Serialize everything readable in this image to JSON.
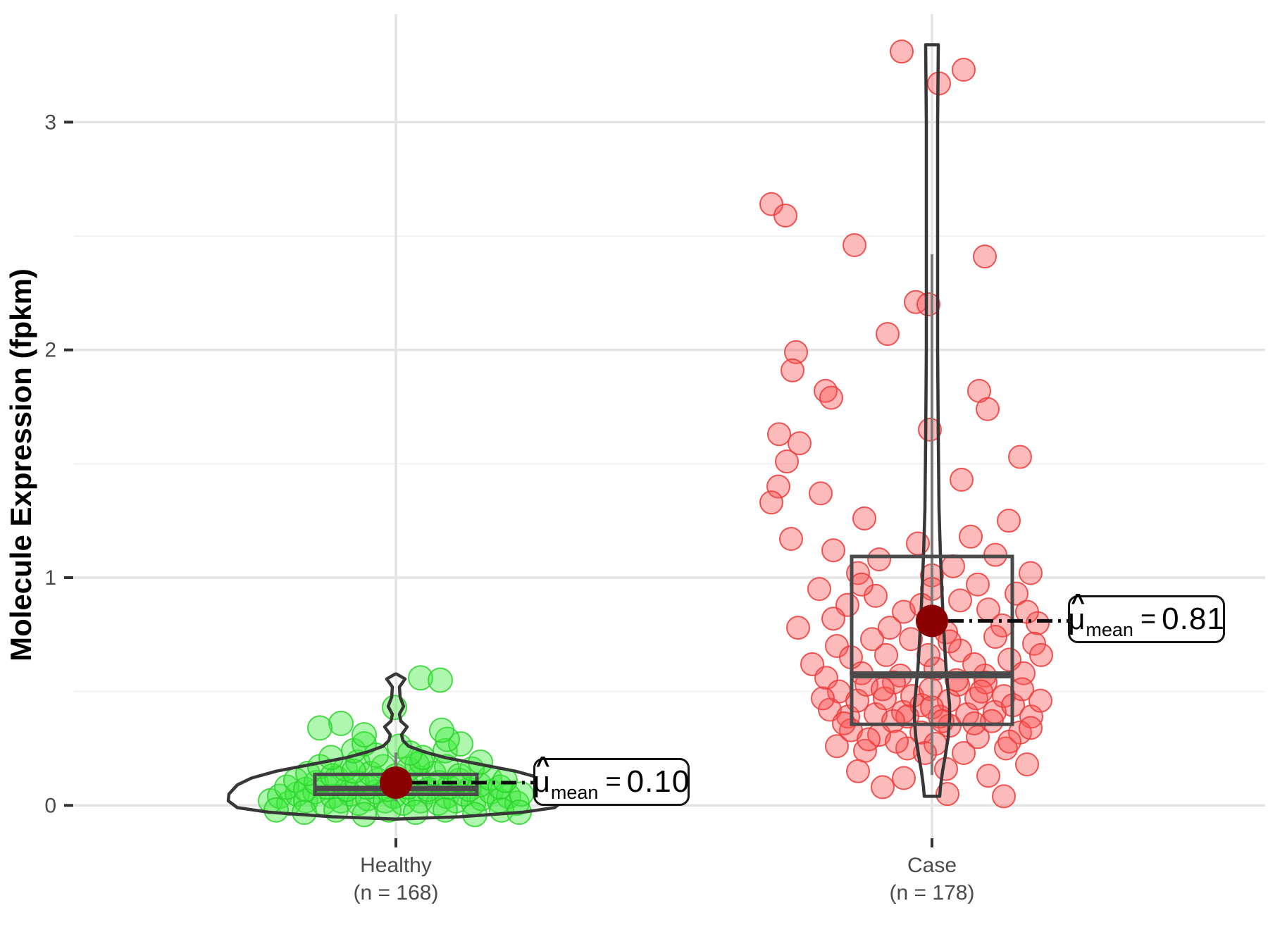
{
  "chart_data": {
    "type": "violin-box-jitter",
    "ylabel": "Molecule Expression (fpkm)",
    "ylim": [
      -0.15,
      3.47
    ],
    "yticks": [
      0,
      1,
      2,
      3
    ],
    "yminor": [
      0.5,
      1.5,
      2.5
    ],
    "grid": "on",
    "colors": {
      "grid_major": "#e4e4e4",
      "grid_minor": "#f2f2f2",
      "tick_text": "#4a4a4a",
      "axis_title": "#000000",
      "violin_stroke": "#373737",
      "box_stroke": "#4a4a4a",
      "whisker": "#7a7a7a",
      "mean_point": "#8b0000",
      "meanline": "#0d0d0d",
      "healthy_fill": "rgba(64,235,64,0.42)",
      "healthy_edge": "rgba(46,210,46,0.85)",
      "case_fill": "rgba(250,82,82,0.40)",
      "case_edge": "rgba(238,58,58,0.85)"
    },
    "groups": [
      {
        "id": "healthy",
        "label": "Healthy",
        "sublabel": "(n = 168)",
        "n": 168,
        "mean": 0.1,
        "median": 0.074,
        "q1": 0.049,
        "q3": 0.136,
        "whisker_low": 0.018,
        "whisker_high": 0.232,
        "annotation": {
          "mu": "μ",
          "hat": "^",
          "sub": "mean",
          "eq": "=",
          "value": "0.10"
        },
        "point_radius": 17,
        "mean_radius": 23,
        "violin": [
          [
            0.577,
            1
          ],
          [
            0.555,
            13
          ],
          [
            0.52,
            5
          ],
          [
            0.475,
            6
          ],
          [
            0.435,
            11
          ],
          [
            0.4,
            5
          ],
          [
            0.37,
            7
          ],
          [
            0.345,
            16
          ],
          [
            0.31,
            8
          ],
          [
            0.285,
            10
          ],
          [
            0.26,
            18
          ],
          [
            0.235,
            40
          ],
          [
            0.21,
            70
          ],
          [
            0.18,
            120
          ],
          [
            0.15,
            170
          ],
          [
            0.12,
            205
          ],
          [
            0.09,
            225
          ],
          [
            0.05,
            237
          ],
          [
            0.02,
            238
          ],
          [
            -0.01,
            225
          ],
          [
            -0.03,
            180
          ],
          [
            -0.05,
            90
          ],
          [
            -0.06,
            0
          ]
        ],
        "points": [
          [
            -178,
            0.02
          ],
          [
            -165,
            0.04
          ],
          [
            -152,
            0.01
          ],
          [
            -140,
            0.05
          ],
          [
            -128,
            0.02
          ],
          [
            -115,
            0.06
          ],
          [
            -103,
            0.01
          ],
          [
            -90,
            0.04
          ],
          [
            -78,
            0.02
          ],
          [
            -65,
            0.05
          ],
          [
            -53,
            0.01
          ],
          [
            -40,
            0.03
          ],
          [
            -28,
            0.06
          ],
          [
            -15,
            0.02
          ],
          [
            -3,
            0.04
          ],
          [
            10,
            0.01
          ],
          [
            22,
            0.05
          ],
          [
            35,
            0.02
          ],
          [
            47,
            0.06
          ],
          [
            60,
            0.01
          ],
          [
            72,
            0.04
          ],
          [
            85,
            0.02
          ],
          [
            97,
            0.05
          ],
          [
            110,
            0.01
          ],
          [
            122,
            0.03
          ],
          [
            135,
            0.06
          ],
          [
            147,
            0.02
          ],
          [
            160,
            0.04
          ],
          [
            172,
            0.01
          ],
          [
            178,
            0.05
          ],
          [
            -170,
            -0.02
          ],
          [
            -130,
            -0.03
          ],
          [
            -85,
            -0.02
          ],
          [
            -45,
            -0.04
          ],
          [
            -10,
            -0.02
          ],
          [
            28,
            -0.03
          ],
          [
            70,
            -0.02
          ],
          [
            112,
            -0.04
          ],
          [
            150,
            -0.02
          ],
          [
            175,
            -0.03
          ],
          [
            -155,
            0.08
          ],
          [
            -142,
            0.11
          ],
          [
            -128,
            0.07
          ],
          [
            -113,
            0.1
          ],
          [
            -98,
            0.08
          ],
          [
            -84,
            0.12
          ],
          [
            -70,
            0.07
          ],
          [
            -55,
            0.1
          ],
          [
            -41,
            0.08
          ],
          [
            -26,
            0.11
          ],
          [
            -12,
            0.07
          ],
          [
            3,
            0.1
          ],
          [
            17,
            0.08
          ],
          [
            32,
            0.12
          ],
          [
            46,
            0.07
          ],
          [
            61,
            0.1
          ],
          [
            75,
            0.08
          ],
          [
            90,
            0.11
          ],
          [
            104,
            0.07
          ],
          [
            119,
            0.09
          ],
          [
            133,
            0.12
          ],
          [
            148,
            0.08
          ],
          [
            155,
            0.11
          ],
          [
            -125,
            0.14
          ],
          [
            -108,
            0.17
          ],
          [
            -90,
            0.13
          ],
          [
            -72,
            0.16
          ],
          [
            -54,
            0.19
          ],
          [
            -36,
            0.14
          ],
          [
            -18,
            0.17
          ],
          [
            0,
            0.13
          ],
          [
            18,
            0.16
          ],
          [
            36,
            0.19
          ],
          [
            54,
            0.14
          ],
          [
            72,
            0.17
          ],
          [
            90,
            0.13
          ],
          [
            108,
            0.16
          ],
          [
            120,
            0.19
          ],
          [
            -60,
            0.15
          ],
          [
            30,
            0.18
          ],
          [
            -92,
            0.21
          ],
          [
            -60,
            0.24
          ],
          [
            -28,
            0.22
          ],
          [
            5,
            0.26
          ],
          [
            38,
            0.21
          ],
          [
            70,
            0.24
          ],
          [
            92,
            0.27
          ],
          [
            -45,
            0.27
          ],
          [
            20,
            0.23
          ],
          [
            -45,
            0.31
          ],
          [
            -78,
            0.36
          ],
          [
            73,
            0.29
          ],
          [
            -2,
            0.43
          ],
          [
            35,
            0.56
          ],
          [
            63,
            0.55
          ],
          [
            -108,
            0.34
          ],
          [
            65,
            0.33
          ]
        ]
      },
      {
        "id": "case",
        "label": "Case",
        "sublabel": "(n = 178)",
        "n": 178,
        "mean": 0.81,
        "median": 0.573,
        "q1": 0.356,
        "q3": 1.093,
        "whisker_low": 0.133,
        "whisker_high": 2.42,
        "annotation": {
          "mu": "μ",
          "hat": "^",
          "sub": "mean",
          "eq": "=",
          "value": "0.81"
        },
        "point_radius": 16,
        "mean_radius": 23,
        "violin": [
          [
            3.34,
            9
          ],
          [
            3.0,
            8
          ],
          [
            2.5,
            8
          ],
          [
            2.0,
            8
          ],
          [
            1.6,
            9
          ],
          [
            1.3,
            10
          ],
          [
            1.1,
            12
          ],
          [
            0.95,
            14
          ],
          [
            0.81,
            16
          ],
          [
            0.7,
            18
          ],
          [
            0.6,
            20
          ],
          [
            0.5,
            23
          ],
          [
            0.44,
            25
          ],
          [
            0.38,
            25
          ],
          [
            0.3,
            23
          ],
          [
            0.22,
            19
          ],
          [
            0.15,
            15
          ],
          [
            0.08,
            12
          ],
          [
            0.04,
            11
          ]
        ],
        "points": [
          [
            -43,
            3.31
          ],
          [
            10,
            3.17
          ],
          [
            45,
            3.23
          ],
          [
            -228,
            2.64
          ],
          [
            -208,
            2.59
          ],
          [
            -110,
            2.46
          ],
          [
            75,
            2.41
          ],
          [
            -23,
            2.21
          ],
          [
            -5,
            2.2
          ],
          [
            -63,
            2.07
          ],
          [
            -193,
            1.99
          ],
          [
            -198,
            1.91
          ],
          [
            -151,
            1.82
          ],
          [
            67,
            1.82
          ],
          [
            -143,
            1.79
          ],
          [
            79,
            1.74
          ],
          [
            -217,
            1.63
          ],
          [
            -3,
            1.65
          ],
          [
            -188,
            1.59
          ],
          [
            -206,
            1.51
          ],
          [
            125,
            1.53
          ],
          [
            42,
            1.43
          ],
          [
            -218,
            1.4
          ],
          [
            -158,
            1.37
          ],
          [
            -228,
            1.33
          ],
          [
            -96,
            1.26
          ],
          [
            109,
            1.25
          ],
          [
            -200,
            1.17
          ],
          [
            -140,
            1.12
          ],
          [
            -75,
            1.08
          ],
          [
            -20,
            1.15
          ],
          [
            30,
            1.05
          ],
          [
            90,
            1.1
          ],
          [
            140,
            1.02
          ],
          [
            -105,
            1.02
          ],
          [
            55,
            1.18
          ],
          [
            0,
            1.01
          ],
          [
            -160,
            0.95
          ],
          [
            -120,
            0.88
          ],
          [
            -80,
            0.92
          ],
          [
            -40,
            0.85
          ],
          [
            0,
            0.95
          ],
          [
            40,
            0.9
          ],
          [
            80,
            0.86
          ],
          [
            120,
            0.93
          ],
          [
            150,
            0.8
          ],
          [
            -190,
            0.78
          ],
          [
            -60,
            0.78
          ],
          [
            20,
            0.76
          ],
          [
            100,
            0.79
          ],
          [
            -140,
            0.82
          ],
          [
            -15,
            0.88
          ],
          [
            65,
            0.97
          ],
          [
            135,
            0.85
          ],
          [
            -100,
            0.97
          ],
          [
            -170,
            0.62
          ],
          [
            -135,
            0.7
          ],
          [
            -100,
            0.58
          ],
          [
            -65,
            0.66
          ],
          [
            -30,
            0.73
          ],
          [
            5,
            0.6
          ],
          [
            40,
            0.68
          ],
          [
            75,
            0.57
          ],
          [
            110,
            0.64
          ],
          [
            145,
            0.71
          ],
          [
            -150,
            0.56
          ],
          [
            -45,
            0.57
          ],
          [
            25,
            0.72
          ],
          [
            90,
            0.74
          ],
          [
            -85,
            0.73
          ],
          [
            130,
            0.58
          ],
          [
            -5,
            0.66
          ],
          [
            60,
            0.62
          ],
          [
            -115,
            0.65
          ],
          [
            155,
            0.66
          ],
          [
            -145,
            0.42
          ],
          [
            -132,
            0.5
          ],
          [
            -119,
            0.39
          ],
          [
            -106,
            0.46
          ],
          [
            -93,
            0.53
          ],
          [
            -80,
            0.4
          ],
          [
            -67,
            0.47
          ],
          [
            -54,
            0.54
          ],
          [
            -41,
            0.41
          ],
          [
            -28,
            0.48
          ],
          [
            -15,
            0.44
          ],
          [
            -2,
            0.51
          ],
          [
            11,
            0.39
          ],
          [
            24,
            0.46
          ],
          [
            37,
            0.53
          ],
          [
            50,
            0.4
          ],
          [
            63,
            0.47
          ],
          [
            76,
            0.54
          ],
          [
            89,
            0.41
          ],
          [
            102,
            0.48
          ],
          [
            115,
            0.44
          ],
          [
            128,
            0.51
          ],
          [
            141,
            0.39
          ],
          [
            154,
            0.46
          ],
          [
            -155,
            0.47
          ],
          [
            -70,
            0.51
          ],
          [
            0,
            0.43
          ],
          [
            70,
            0.5
          ],
          [
            -35,
            0.39
          ],
          [
            35,
            0.55
          ],
          [
            -135,
            0.26
          ],
          [
            -115,
            0.33
          ],
          [
            -95,
            0.24
          ],
          [
            -75,
            0.31
          ],
          [
            -55,
            0.37
          ],
          [
            -35,
            0.25
          ],
          [
            -15,
            0.32
          ],
          [
            5,
            0.27
          ],
          [
            25,
            0.35
          ],
          [
            45,
            0.23
          ],
          [
            65,
            0.3
          ],
          [
            85,
            0.37
          ],
          [
            105,
            0.25
          ],
          [
            125,
            0.32
          ],
          [
            -125,
            0.36
          ],
          [
            -50,
            0.28
          ],
          [
            15,
            0.37
          ],
          [
            60,
            0.36
          ],
          [
            110,
            0.28
          ],
          [
            140,
            0.34
          ],
          [
            -90,
            0.29
          ],
          [
            -10,
            0.23
          ],
          [
            -105,
            0.15
          ],
          [
            -40,
            0.12
          ],
          [
            20,
            0.16
          ],
          [
            80,
            0.13
          ],
          [
            135,
            0.18
          ],
          [
            -70,
            0.08
          ],
          [
            22,
            0.05
          ],
          [
            102,
            0.04
          ]
        ]
      }
    ]
  }
}
